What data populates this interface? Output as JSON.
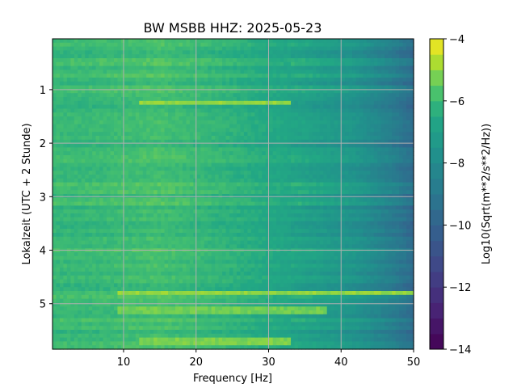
{
  "chart_data": {
    "type": "heatmap",
    "title": "BW MSBB  HHZ: 2025-05-23",
    "xlabel": "Frequency [Hz]",
    "ylabel": "Lokalzeit (UTC + 2 Stunde)",
    "colorbar_label": "Log10(Sqrt(m**2/s**2/Hz))",
    "colormap": "viridis",
    "x_range": [
      0.2,
      50
    ],
    "y_range": [
      0.05,
      5.85
    ],
    "y_inverted": true,
    "c_range": [
      -14,
      -4
    ],
    "grid": true,
    "x_ticks": [
      10,
      20,
      30,
      40,
      50
    ],
    "x_tick_labels": [
      "10",
      "20",
      "30",
      "40",
      "50"
    ],
    "y_ticks": [
      1,
      2,
      3,
      4,
      5
    ],
    "y_tick_labels": [
      "1",
      "2",
      "3",
      "4",
      "5"
    ],
    "c_ticks": [
      -4,
      -6,
      -8,
      -10,
      -12,
      -14
    ],
    "c_tick_labels": [
      "−4",
      "−6",
      "−8",
      "−10",
      "−12",
      "−14"
    ],
    "typical_levels": [
      {
        "freq_hz": 5,
        "log10_psd": -6.0
      },
      {
        "freq_hz": 15,
        "log10_psd": -5.8
      },
      {
        "freq_hz": 25,
        "log10_psd": -6.2
      },
      {
        "freq_hz": 35,
        "log10_psd": -6.8
      },
      {
        "freq_hz": 42,
        "log10_psd": -7.5
      },
      {
        "freq_hz": 47,
        "log10_psd": -8.6
      },
      {
        "freq_hz": 50,
        "log10_psd": -9.5
      }
    ],
    "bright_bands": [
      {
        "time_h": 1.25,
        "freq_range": [
          12,
          33
        ],
        "log10_psd": -5.0
      },
      {
        "time_h": 4.8,
        "freq_range": [
          9,
          50
        ],
        "log10_psd": -5.0
      },
      {
        "time_h": 5.1,
        "freq_range": [
          9,
          38
        ],
        "log10_psd": -5.3
      },
      {
        "time_h": 5.68,
        "freq_range": [
          12,
          33
        ],
        "log10_psd": -5.2
      }
    ]
  }
}
